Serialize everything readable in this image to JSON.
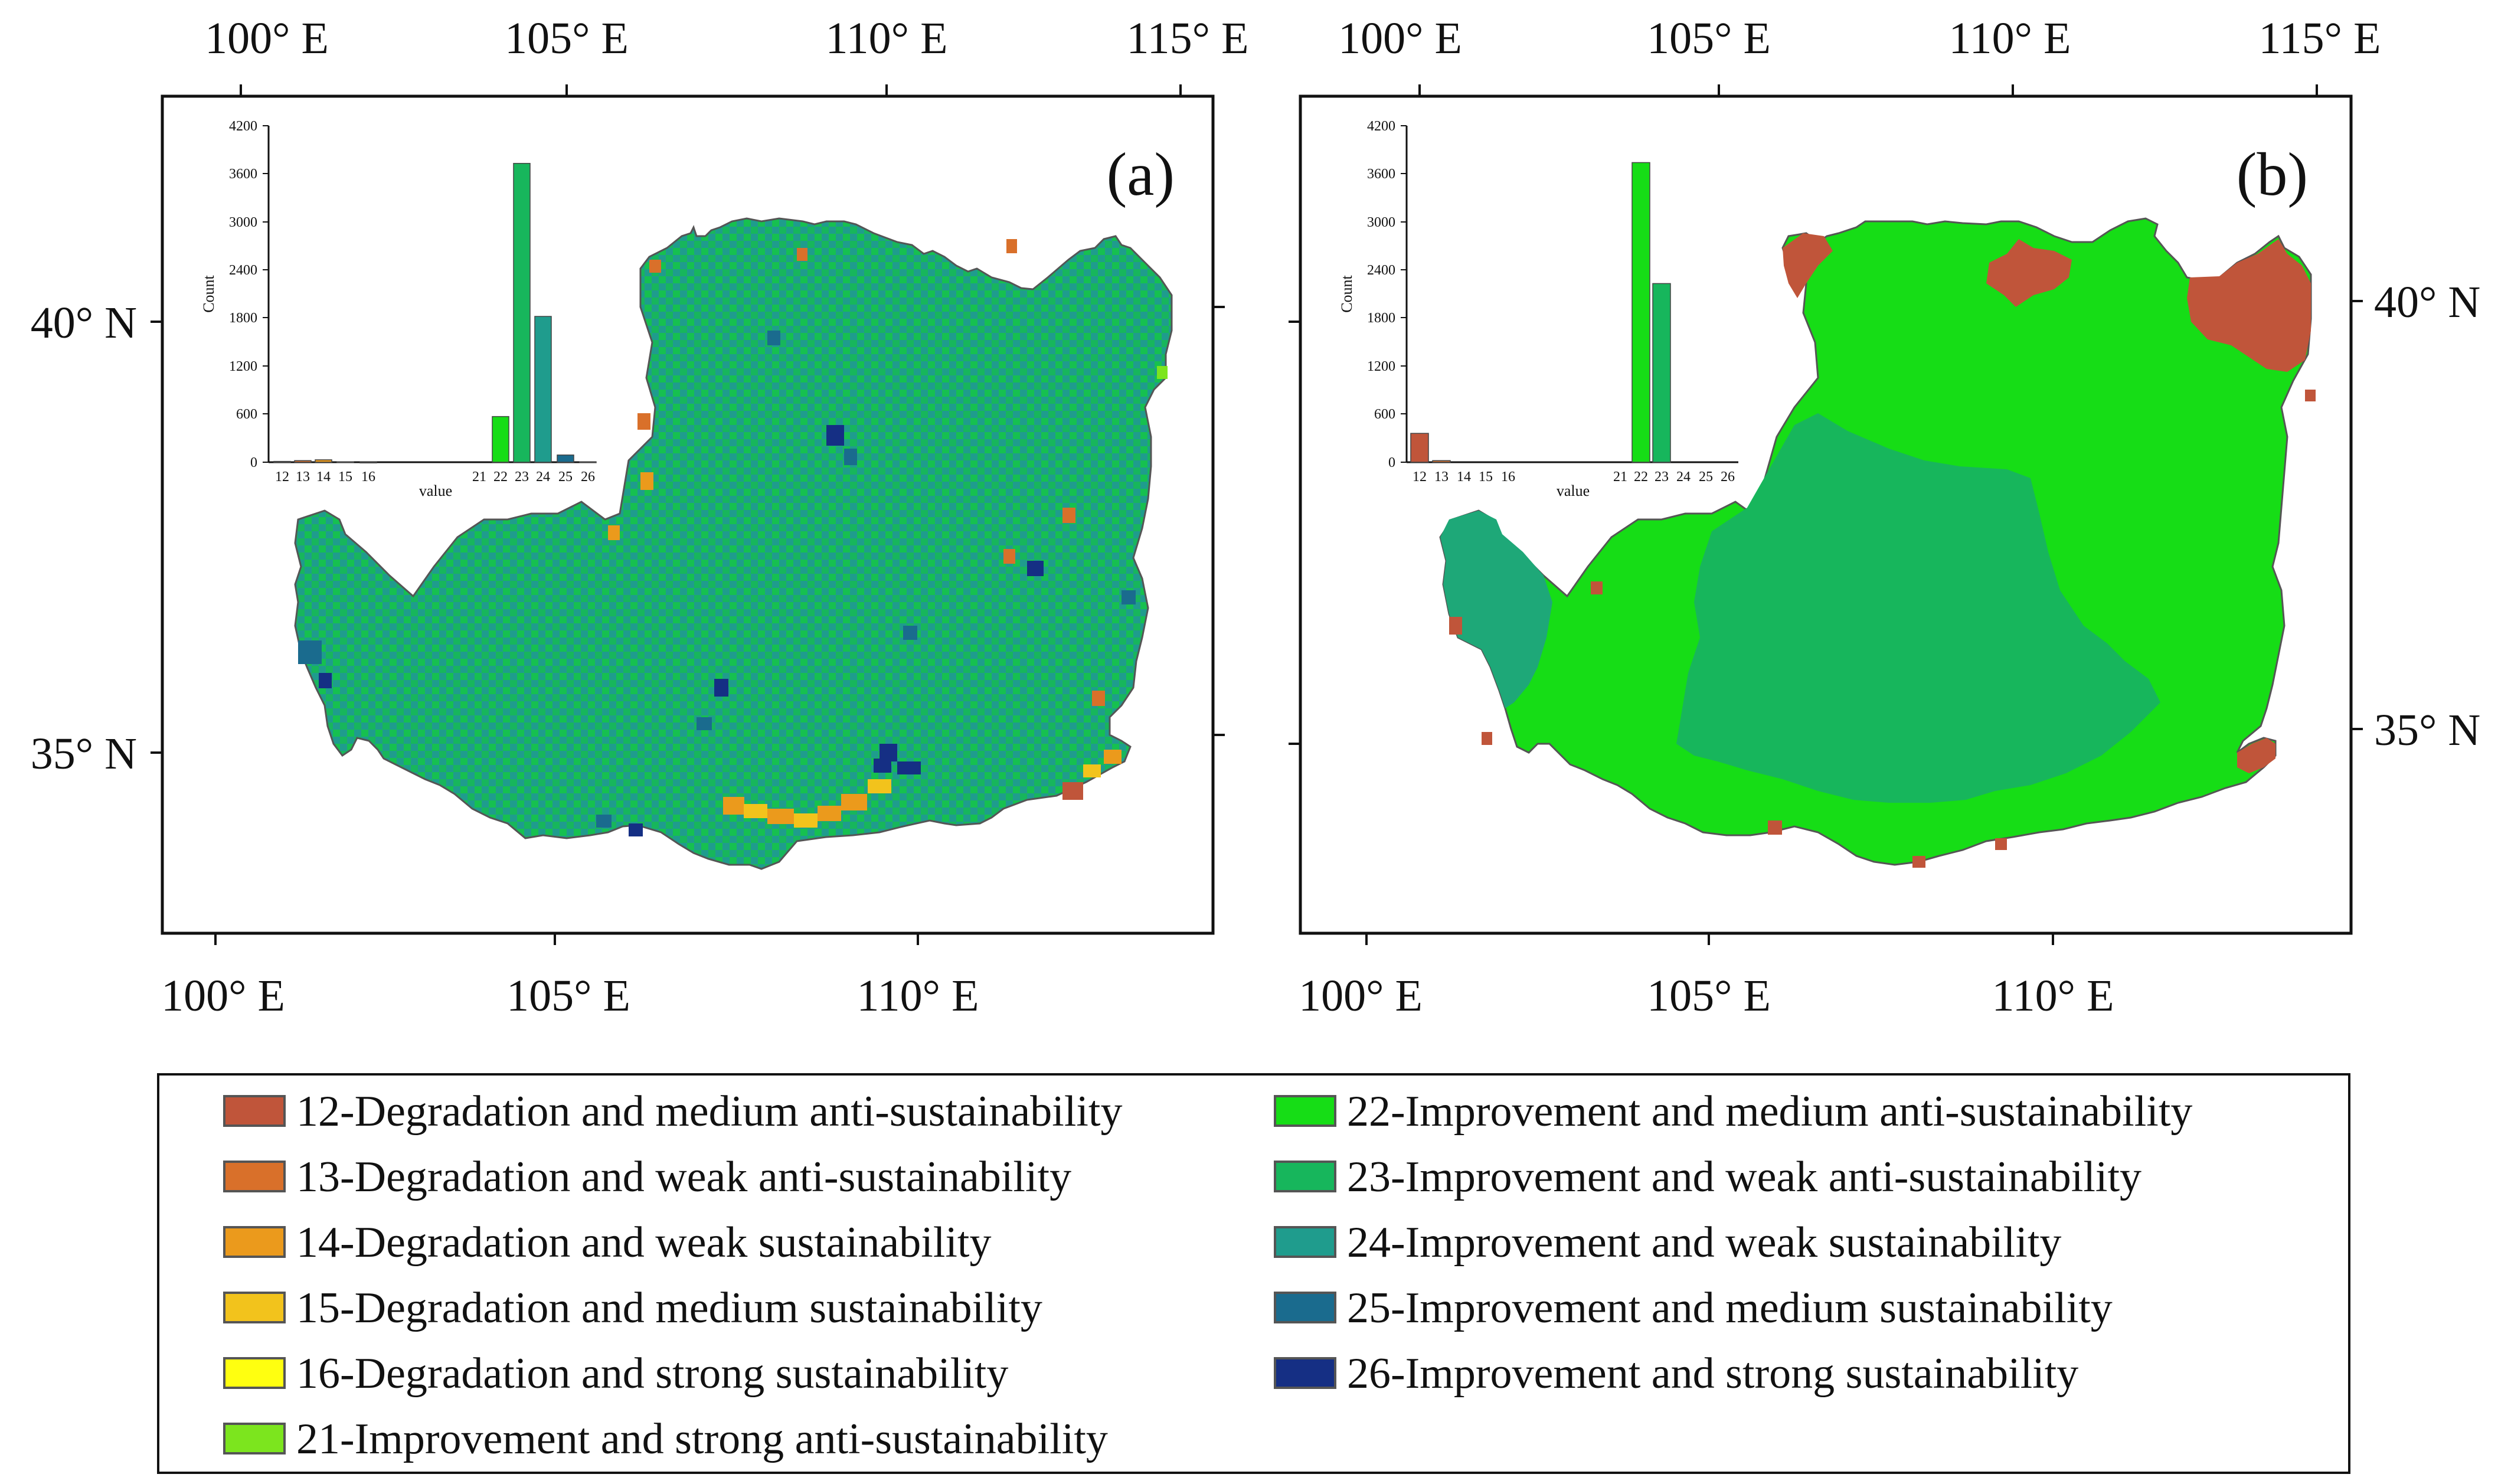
{
  "map_a": {
    "label": "(a)",
    "top_ticks": [
      "100° E",
      "105° E",
      "110° E",
      "115° E"
    ],
    "bottom_ticks": [
      "100° E",
      "105° E",
      "110° E"
    ],
    "left_ticks": [
      "40° N",
      "35° N"
    ],
    "histogram": {
      "ylabel": "Count",
      "xlabel": "value",
      "yticks": [
        "0",
        "600",
        "1200",
        "1800",
        "2400",
        "3000",
        "3600",
        "4200"
      ],
      "xticks_low": [
        "12",
        "13",
        "14",
        "15",
        "16"
      ],
      "xticks_high": [
        "21",
        "22",
        "23",
        "24",
        "25",
        "26"
      ]
    }
  },
  "map_b": {
    "label": "(b)",
    "top_ticks": [
      "100° E",
      "105° E",
      "110° E",
      "115° E"
    ],
    "bottom_ticks": [
      "100° E",
      "105° E",
      "110° E"
    ],
    "right_ticks": [
      "40° N",
      "35° N"
    ],
    "histogram": {
      "ylabel": "Count",
      "xlabel": "value",
      "yticks": [
        "0",
        "600",
        "1200",
        "1800",
        "2400",
        "3000",
        "3600",
        "4200"
      ],
      "xticks_low": [
        "12",
        "13",
        "14",
        "15",
        "16"
      ],
      "xticks_high": [
        "21",
        "22",
        "23",
        "24",
        "25",
        "26"
      ]
    }
  },
  "legend": {
    "items": [
      {
        "code": 12,
        "label": "12-Degradation and medium anti-sustainability",
        "color": "#c0553a"
      },
      {
        "code": 13,
        "label": "13-Degradation and weak anti-sustainability",
        "color": "#d9702a"
      },
      {
        "code": 14,
        "label": "14-Degradation and weak sustainability",
        "color": "#eb9a1c"
      },
      {
        "code": 15,
        "label": "15-Degradation and medium sustainability",
        "color": "#f2c31c"
      },
      {
        "code": 16,
        "label": "16-Degradation and strong sustainability",
        "color": "#ffff10"
      },
      {
        "code": 21,
        "label": "21-Improvement and strong anti-sustainability",
        "color": "#7ce51e"
      },
      {
        "code": 22,
        "label": "22-Improvement and medium anti-sustainability",
        "color": "#16dd16"
      },
      {
        "code": 23,
        "label": "23-Improvement and weak anti-sustainability",
        "color": "#17b65c"
      },
      {
        "code": 24,
        "label": "24-Improvement and weak sustainability",
        "color": "#1f9c8d"
      },
      {
        "code": 25,
        "label": "25-Improvement and medium sustainability",
        "color": "#1a6b8e"
      },
      {
        "code": 26,
        "label": "26-Improvement and strong sustainability",
        "color": "#152f84"
      }
    ]
  },
  "chart_data": [
    {
      "type": "bar",
      "panel": "(a) histogram",
      "categories": [
        "12",
        "13",
        "14",
        "15",
        "16",
        "21",
        "22",
        "23",
        "24",
        "25",
        "26"
      ],
      "values": [
        10,
        20,
        30,
        5,
        2,
        0,
        570,
        3730,
        1820,
        90,
        5
      ],
      "xlabel": "value",
      "ylabel": "Count",
      "ylim": [
        0,
        4200
      ]
    },
    {
      "type": "bar",
      "panel": "(b) histogram",
      "categories": [
        "12",
        "13",
        "14",
        "15",
        "16",
        "21",
        "22",
        "23",
        "24",
        "25",
        "26"
      ],
      "values": [
        360,
        20,
        0,
        0,
        0,
        0,
        3740,
        2230,
        0,
        0,
        0
      ],
      "xlabel": "value",
      "ylabel": "Count",
      "ylim": [
        0,
        4200
      ]
    }
  ]
}
